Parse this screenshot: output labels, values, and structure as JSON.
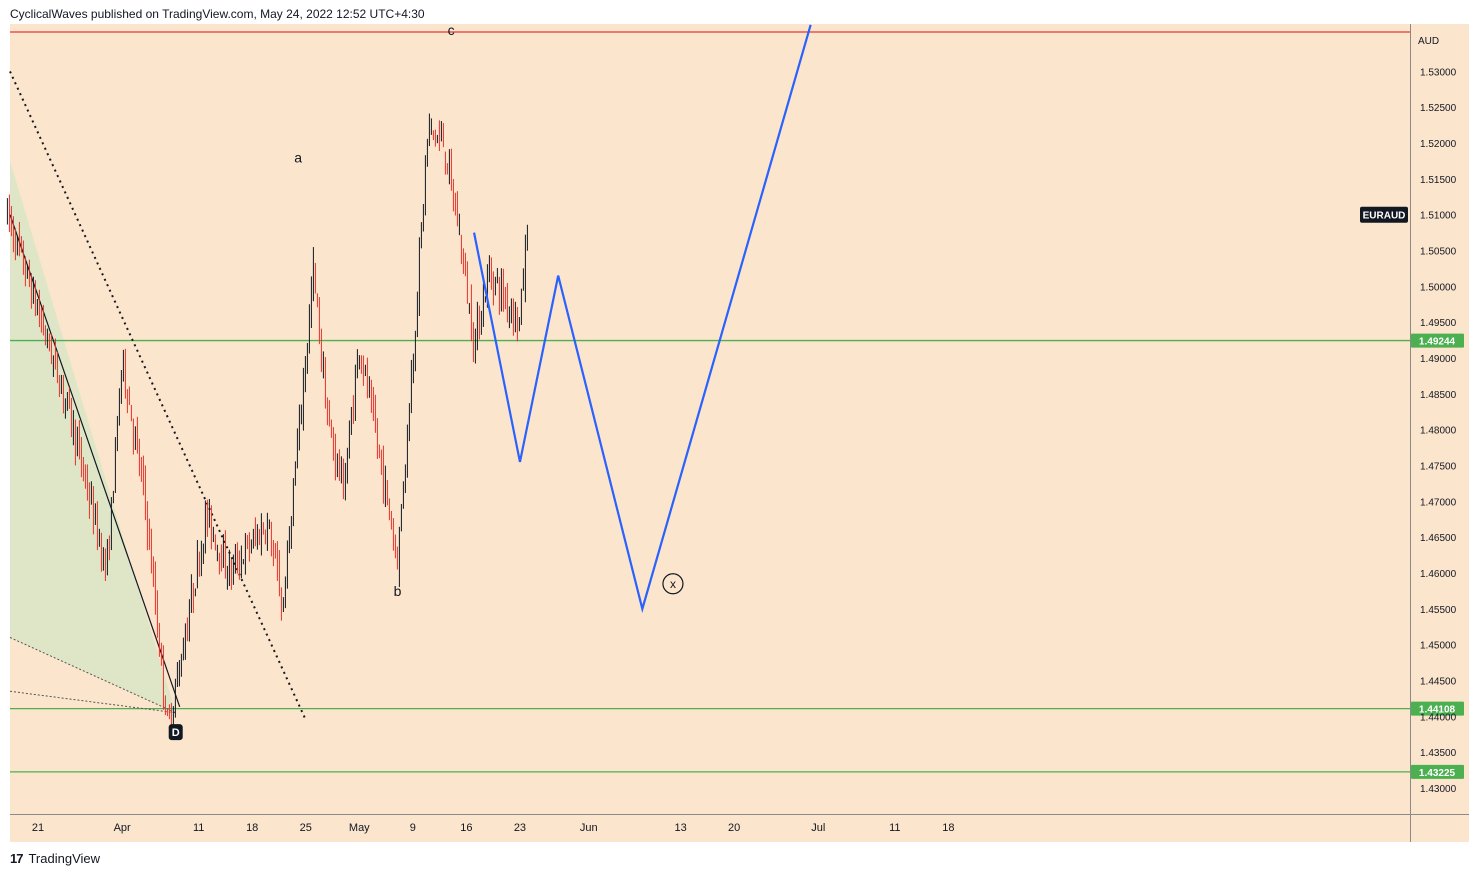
{
  "header": {
    "publisher_line": "CyclicalWaves published on TradingView.com, May 24, 2022 12:52 UTC+4:30"
  },
  "footer": {
    "logo_glyph": "17",
    "brand": "TradingView"
  },
  "colors": {
    "background": "#fbe5cc",
    "up_candle": "#131722",
    "down_candle": "#e5312c",
    "support_line": "#4caf50",
    "resistance_line": "#e53935",
    "projection": "#2962ff",
    "wedge_fill": "#d9e6c6"
  },
  "chart_data": {
    "type": "candlestick",
    "symbol_label": "EURAUD",
    "currency": "AUD",
    "y_range": [
      1.4255,
      1.5355
    ],
    "y_ticks": [
      "1.53000",
      "1.52500",
      "1.52000",
      "1.51500",
      "1.51000",
      "1.50500",
      "1.50000",
      "1.49500",
      "1.49000",
      "1.48500",
      "1.48000",
      "1.47500",
      "1.47000",
      "1.46500",
      "1.46000",
      "1.45500",
      "1.45000",
      "1.44500",
      "1.44000",
      "1.43500",
      "1.43000"
    ],
    "x_ticks": [
      {
        "label": "21",
        "date": "2022-03-21"
      },
      {
        "label": "Apr",
        "date": "2022-04-01"
      },
      {
        "label": "11",
        "date": "2022-04-11"
      },
      {
        "label": "18",
        "date": "2022-04-18"
      },
      {
        "label": "25",
        "date": "2022-04-25"
      },
      {
        "label": "May",
        "date": "2022-05-02"
      },
      {
        "label": "9",
        "date": "2022-05-09"
      },
      {
        "label": "16",
        "date": "2022-05-16"
      },
      {
        "label": "23",
        "date": "2022-05-23"
      },
      {
        "label": "Jun",
        "date": "2022-06-01"
      },
      {
        "label": "13",
        "date": "2022-06-13"
      },
      {
        "label": "20",
        "date": "2022-06-20"
      },
      {
        "label": "Jul",
        "date": "2022-07-01"
      },
      {
        "label": "11",
        "date": "2022-07-11"
      },
      {
        "label": "18",
        "date": "2022-07-18"
      }
    ],
    "horizontal_levels": [
      {
        "value": 1.5355,
        "color": "red",
        "label": ""
      },
      {
        "value": 1.49244,
        "color": "green",
        "label": "1.49244"
      },
      {
        "value": 1.44108,
        "color": "green",
        "label": "1.44108"
      },
      {
        "value": 1.43225,
        "color": "green",
        "label": "1.43225"
      }
    ],
    "last_price_label": "EURAUD",
    "wave_labels": [
      {
        "text": "a",
        "date": "2022-04-24",
        "value": 1.518
      },
      {
        "text": "b",
        "date": "2022-05-07",
        "value": 1.4575
      },
      {
        "text": "c",
        "date": "2022-05-14",
        "value": 1.5358
      },
      {
        "text": "D",
        "date": "2022-04-08",
        "value": 1.4378
      },
      {
        "text": "x",
        "date": "2022-06-12",
        "value": 1.4585
      }
    ],
    "projection_path": [
      {
        "date": "2022-05-17",
        "value": 1.5075
      },
      {
        "date": "2022-05-23",
        "value": 1.4755
      },
      {
        "date": "2022-05-28",
        "value": 1.5015
      },
      {
        "date": "2022-06-08",
        "value": 1.455
      },
      {
        "date": "2022-06-30",
        "value": 1.5365
      }
    ],
    "candles_summary": {
      "start_date": "2022-03-17",
      "end_date": "2022-05-24",
      "anchors": [
        {
          "date": "2022-03-17",
          "value": 1.51
        },
        {
          "date": "2022-03-25",
          "value": 1.483
        },
        {
          "date": "2022-03-30",
          "value": 1.46
        },
        {
          "date": "2022-04-01",
          "value": 1.49
        },
        {
          "date": "2022-04-04",
          "value": 1.47
        },
        {
          "date": "2022-04-07",
          "value": 1.438
        },
        {
          "date": "2022-04-12",
          "value": 1.468
        },
        {
          "date": "2022-04-15",
          "value": 1.46
        },
        {
          "date": "2022-04-20",
          "value": 1.467
        },
        {
          "date": "2022-04-22",
          "value": 1.455
        },
        {
          "date": "2022-04-26",
          "value": 1.502
        },
        {
          "date": "2022-04-28",
          "value": 1.48
        },
        {
          "date": "2022-04-30",
          "value": 1.472
        },
        {
          "date": "2022-05-02",
          "value": 1.492
        },
        {
          "date": "2022-05-04",
          "value": 1.48
        },
        {
          "date": "2022-05-07",
          "value": 1.462
        },
        {
          "date": "2022-05-09",
          "value": 1.49
        },
        {
          "date": "2022-05-11",
          "value": 1.522
        },
        {
          "date": "2022-05-13",
          "value": 1.52
        },
        {
          "date": "2022-05-15",
          "value": 1.508
        },
        {
          "date": "2022-05-17",
          "value": 1.492
        },
        {
          "date": "2022-05-19",
          "value": 1.502
        },
        {
          "date": "2022-05-23",
          "value": 1.495
        },
        {
          "date": "2022-05-24",
          "value": 1.509
        }
      ]
    },
    "grid": false
  }
}
